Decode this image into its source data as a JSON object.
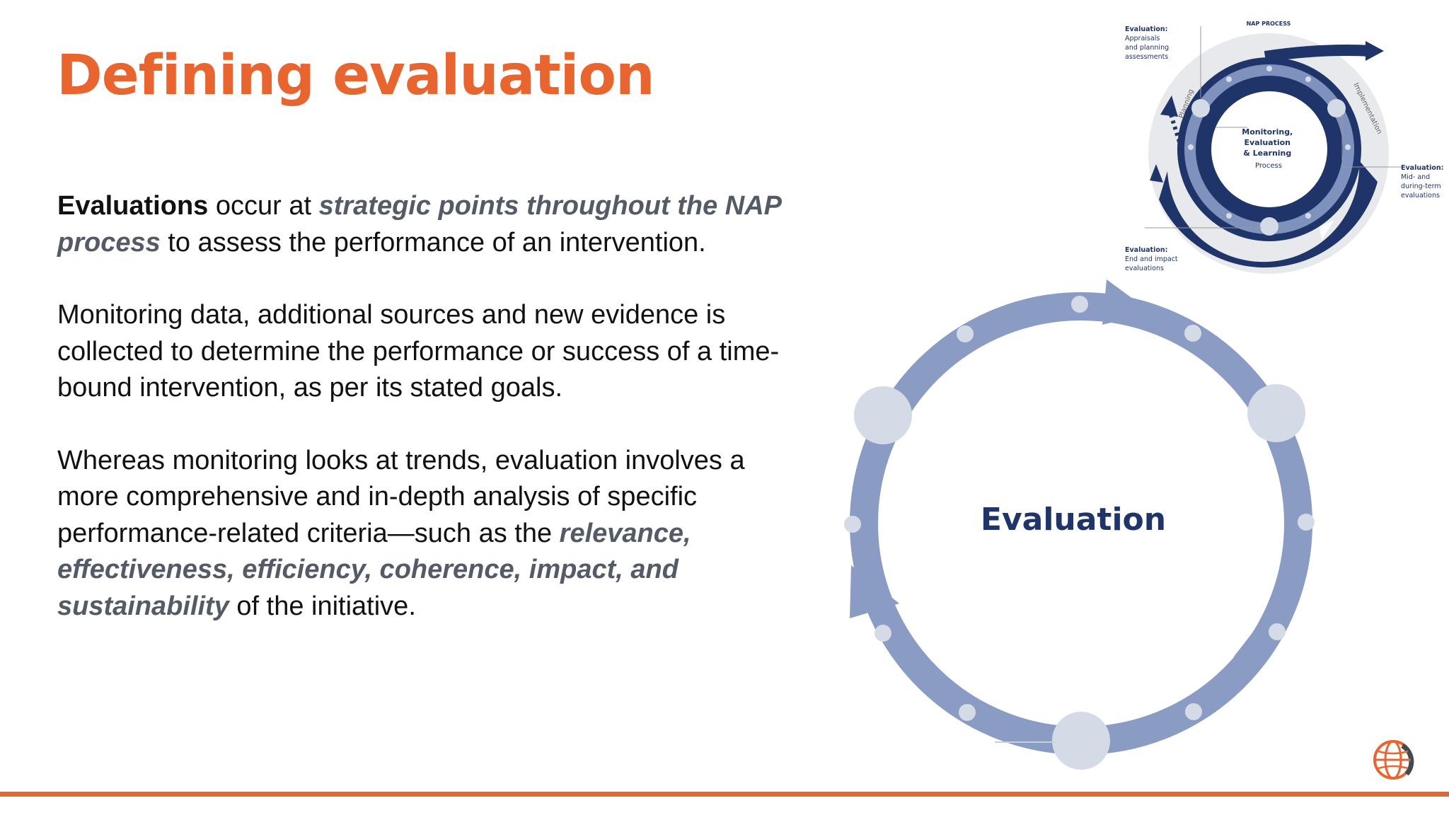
{
  "slide": {
    "title": "Defining evaluation",
    "paragraphs": {
      "p1": {
        "strong": "Evaluations",
        "t1": " occur at ",
        "emph1": "strategic points throughout the NAP process",
        "t2": " to assess the performance of an intervention."
      },
      "p2": "Monitoring data, additional sources and new evidence is collected to determine the performance or success of a time-bound intervention, as per its stated goals.",
      "p3": {
        "t1": "Whereas monitoring looks at trends, evaluation involves a more comprehensive and in-depth analysis of specific performance-related criteria—such as the ",
        "emph1": "relevance, effectiveness, efficiency, coherence, impact, and sustainability",
        "t2": " of the initiative."
      }
    }
  },
  "evaluation_cycle": {
    "center_label": "Evaluation"
  },
  "nap_diagram": {
    "top_label": "NAP PROCESS",
    "arc_label_left": "Planning",
    "arc_label_right": "Implementation",
    "center": {
      "line1": "Monitoring,",
      "line2": "Evaluation",
      "line3": "& Learning",
      "line4": "Process"
    },
    "callout_top_left": {
      "title": "Evaluation:",
      "line1": "Appraisals",
      "line2": "and planning",
      "line3": "assessments"
    },
    "callout_right": {
      "title": "Evaluation:",
      "line1": "Mid- and",
      "line2": "during-term",
      "line3": "evaluations"
    },
    "callout_bottom_left": {
      "title": "Evaluation:",
      "line1": "End and impact",
      "line2": "evaluations"
    }
  },
  "colors": {
    "accent": "#e8652f",
    "navy": "#1f3468",
    "ring_blue": "#8a9cc4",
    "node_light": "#d5dbe6",
    "body_text": "#111111",
    "emphasis_text": "#555b66"
  },
  "icons": {
    "logo": "globe-logo-icon"
  }
}
